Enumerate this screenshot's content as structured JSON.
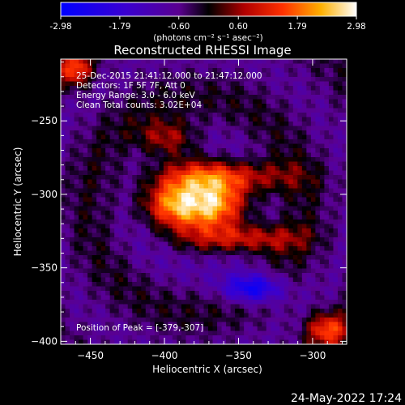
{
  "colorbar": {
    "ticks": [
      "-2.98",
      "-1.79",
      "-0.60",
      "0.60",
      "1.79",
      "2.98"
    ],
    "tick_values": [
      -2.98,
      -1.79,
      -0.6,
      0.6,
      1.79,
      2.98
    ],
    "range": [
      -2.98,
      2.98
    ],
    "unit_label": "(photons cm⁻² s⁻¹ asec⁻²)"
  },
  "chart_data": {
    "type": "heatmap",
    "title": "Reconstructed RHESSI Image",
    "xlabel": "Heliocentric X (arcsec)",
    "ylabel": "Heliocentric Y (arcsec)",
    "xlim": [
      -470,
      -277
    ],
    "ylim": [
      -402,
      -208
    ],
    "xticks": [
      -450,
      -400,
      -350,
      -300
    ],
    "yticks": [
      -400,
      -350,
      -300,
      -250
    ],
    "xtick_labels": [
      "−450",
      "−400",
      "−350",
      "−300"
    ],
    "ytick_labels": [
      "−400",
      "−350",
      "−300",
      "−250"
    ],
    "annotations": [
      "25-Dec-2015 21:41:12.000 to 21:47:12.000",
      "Detectors: 1F 5F 7F, Att 0",
      "Energy Range: 3.0 - 6.0 keV",
      "Clean    Total counts: 3.02E+04"
    ],
    "peak_label": "Position of Peak = [-379,-307]",
    "peak": [
      -379,
      -307
    ],
    "blobs": [
      {
        "x": -379,
        "y": -307,
        "sx": 22,
        "sy": 10,
        "amp": 2.98
      },
      {
        "x": -360,
        "y": -288,
        "sx": 32,
        "sy": 8,
        "amp": 1.9
      },
      {
        "x": -345,
        "y": -330,
        "sx": 26,
        "sy": 7,
        "amp": 1.7
      },
      {
        "x": -398,
        "y": -262,
        "sx": 14,
        "sy": 9,
        "amp": 1.5
      },
      {
        "x": -340,
        "y": -364,
        "sx": 14,
        "sy": 7,
        "amp": -2.4
      },
      {
        "x": -460,
        "y": -215,
        "sx": 8,
        "sy": 8,
        "amp": 2.0
      },
      {
        "x": -290,
        "y": -392,
        "sx": 10,
        "sy": 8,
        "amp": 2.0
      }
    ]
  },
  "footer_date": "24-May-2022 17:24"
}
